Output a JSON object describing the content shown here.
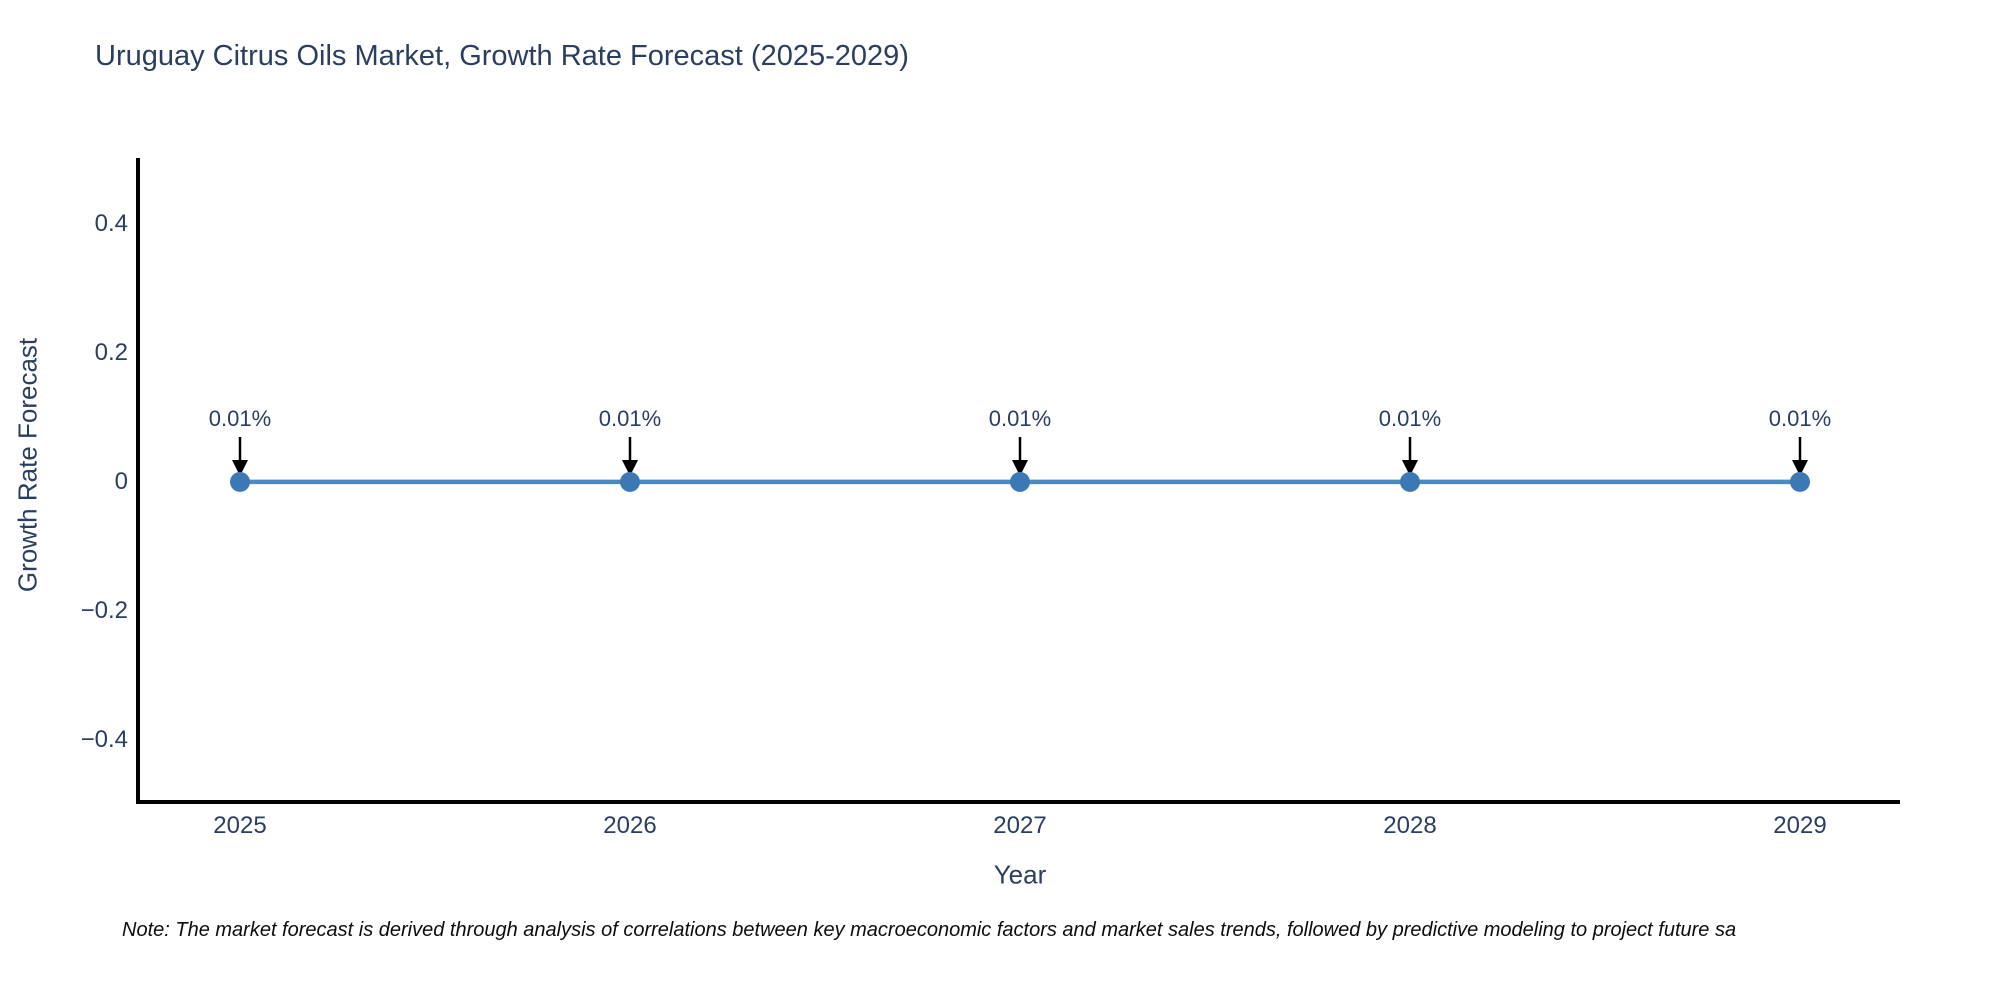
{
  "title": "Uruguay Citrus Oils Market, Growth Rate Forecast (2025-2029)",
  "note": "Note: The market forecast is derived through analysis of correlations between key macroeconomic factors and market sales trends, followed by predictive modeling to project future sa",
  "chart_data": {
    "type": "line",
    "title": "Uruguay Citrus Oils Market, Growth Rate Forecast (2025-2029)",
    "xlabel": "Year",
    "ylabel": "Growth Rate Forecast",
    "categories": [
      "2025",
      "2026",
      "2027",
      "2028",
      "2029"
    ],
    "series": [
      {
        "name": "Growth Rate Forecast",
        "values": [
          0.01,
          0.01,
          0.01,
          0.01,
          0.01
        ],
        "unit": "%"
      }
    ],
    "point_labels": [
      "0.01%",
      "0.01%",
      "0.01%",
      "0.01%",
      "0.01%"
    ],
    "annotation_style": "black-down-arrow",
    "ylim": [
      -0.5,
      0.5
    ],
    "ytick_values": [
      0.4,
      0.2,
      0,
      -0.2,
      -0.4
    ],
    "ytick_labels": [
      "0.4",
      "0.2",
      "0",
      "−0.2",
      "−0.4"
    ],
    "grid": false,
    "legend_position": "none",
    "colors": {
      "line": "#4a8ac4",
      "marker": "#3c78b4",
      "arrow": "#000000",
      "axis": "#000000",
      "text": "#2a3f5f"
    }
  }
}
